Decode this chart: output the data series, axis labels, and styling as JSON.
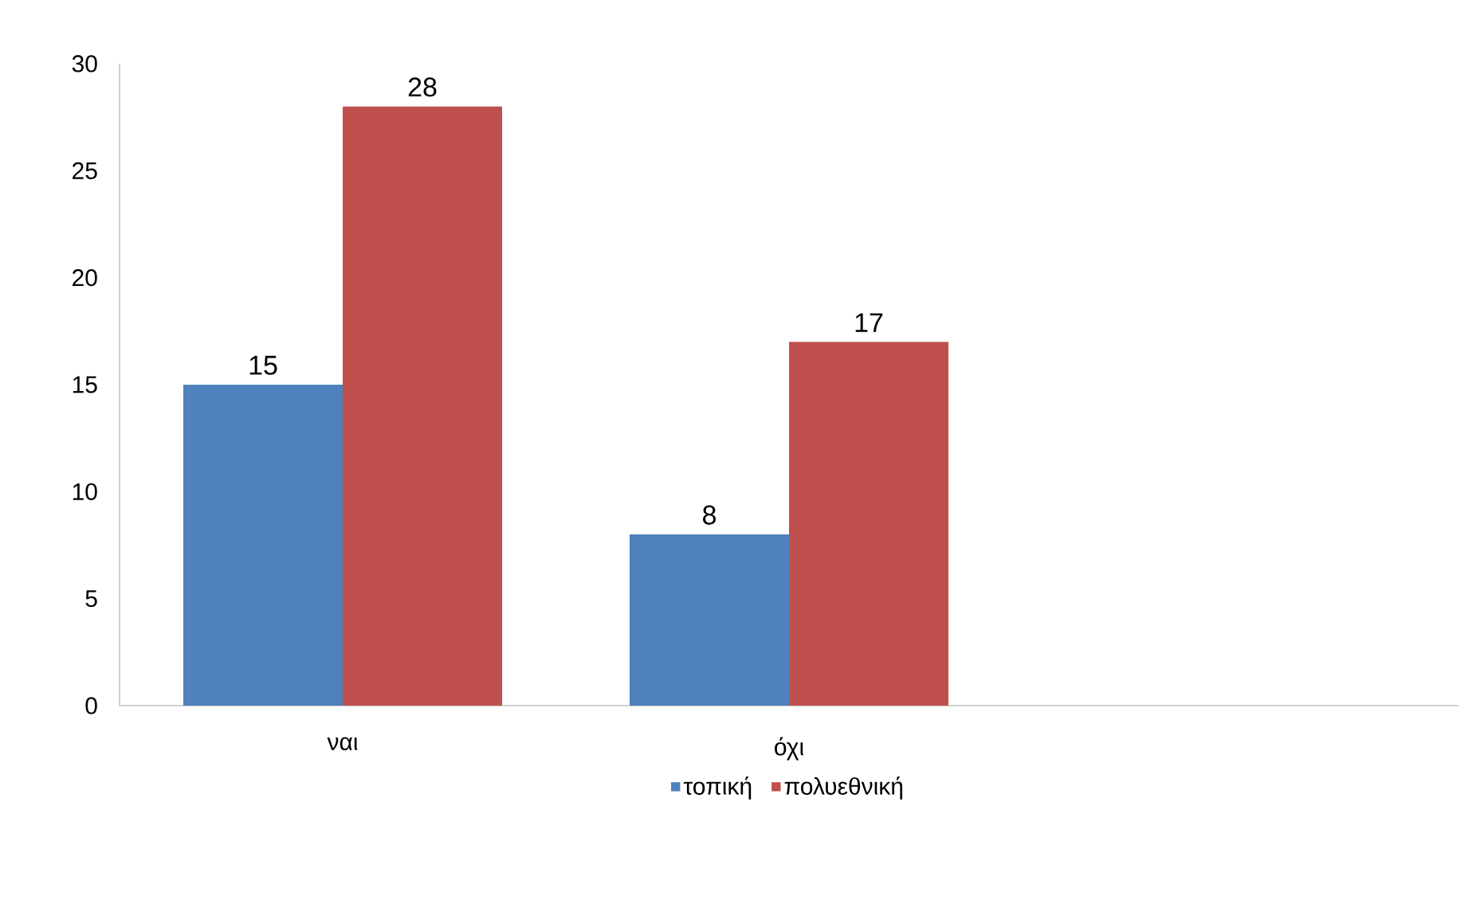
{
  "chart_data": {
    "type": "bar",
    "categories": [
      "ναι",
      "όχι",
      null
    ],
    "series": [
      {
        "name": "τοπική",
        "color": "#4f81bd",
        "values": [
          15,
          8,
          null
        ]
      },
      {
        "name": "πολυεθνική",
        "color": "#c0504d",
        "values": [
          28,
          17,
          null
        ]
      }
    ],
    "ylim": [
      0,
      30
    ],
    "yticks": [
      0,
      5,
      10,
      15,
      20,
      25,
      30
    ],
    "grid": false,
    "legend": "bottom",
    "data_labels": true
  }
}
